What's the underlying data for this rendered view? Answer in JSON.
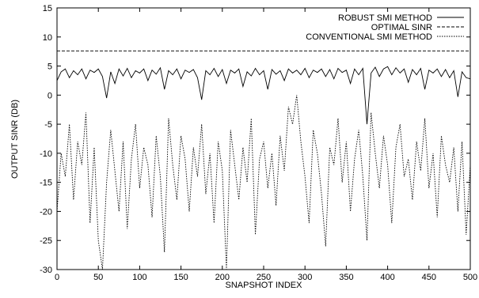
{
  "chart_data": {
    "type": "line",
    "xlabel": "SNAPSHOT INDEX",
    "ylabel": "OUTPUT SINR (DB)",
    "xlim": [
      0,
      500
    ],
    "xticks": [
      0,
      50,
      100,
      150,
      200,
      250,
      300,
      350,
      400,
      450,
      500
    ],
    "ylim": [
      -30,
      15
    ],
    "yticks": [
      -30,
      -25,
      -20,
      -15,
      -10,
      -5,
      0,
      5,
      10,
      15
    ],
    "grid": false,
    "legend": "upper right",
    "x": [
      0,
      5,
      10,
      15,
      20,
      25,
      30,
      35,
      40,
      45,
      50,
      55,
      60,
      65,
      70,
      75,
      80,
      85,
      90,
      95,
      100,
      105,
      110,
      115,
      120,
      125,
      130,
      135,
      140,
      145,
      150,
      155,
      160,
      165,
      170,
      175,
      180,
      185,
      190,
      195,
      200,
      205,
      210,
      215,
      220,
      225,
      230,
      235,
      240,
      245,
      250,
      255,
      260,
      265,
      270,
      275,
      280,
      285,
      290,
      295,
      300,
      305,
      310,
      315,
      320,
      325,
      330,
      335,
      340,
      345,
      350,
      355,
      360,
      365,
      370,
      375,
      380,
      385,
      390,
      395,
      400,
      405,
      410,
      415,
      420,
      425,
      430,
      435,
      440,
      445,
      450,
      455,
      460,
      465,
      470,
      475,
      480,
      485,
      490,
      495,
      500
    ],
    "series": [
      {
        "name": "ROBUST SMI METHOD",
        "color": "#000000",
        "style": "solid",
        "values": [
          2.5,
          4,
          4.5,
          3,
          4.2,
          3.5,
          4.5,
          2.8,
          4.3,
          3.9,
          4.5,
          3.2,
          -0.5,
          4,
          2,
          4.5,
          3.3,
          4.6,
          3,
          4.2,
          3.8,
          4.5,
          2.5,
          4.3,
          3.6,
          4.7,
          1,
          4.2,
          3.5,
          4.5,
          2.8,
          4.3,
          3.9,
          4.4,
          3,
          -0.8,
          4.2,
          3.5,
          4.6,
          3.2,
          4.4,
          2,
          4.3,
          3.8,
          4.5,
          1.5,
          4,
          3.3,
          4.6,
          3.5,
          4.2,
          1,
          4.4,
          3.6,
          4.2,
          2.5,
          4.5,
          3.8,
          4.3,
          3.5,
          4.6,
          3,
          4.3,
          3.9,
          4.5,
          3.2,
          4.4,
          2.8,
          4.6,
          3.9,
          4.3,
          2,
          4.5,
          3.5,
          4.6,
          -5,
          3.8,
          4.8,
          3.2,
          4.5,
          4.9,
          3.5,
          4.7,
          3.8,
          4.5,
          2.2,
          4.4,
          3.5,
          4.6,
          1,
          4.3,
          3.8,
          4.5,
          3.2,
          4.4,
          3,
          4.2,
          -0.3,
          4,
          3,
          2.8
        ]
      },
      {
        "name": "OPTIMAL SINR",
        "color": "#000000",
        "style": "dashed",
        "values": [
          7.6,
          7.6,
          7.6,
          7.6,
          7.6,
          7.6,
          7.6,
          7.6,
          7.6,
          7.6,
          7.6,
          7.6,
          7.6,
          7.6,
          7.6,
          7.6,
          7.6,
          7.6,
          7.6,
          7.6,
          7.6,
          7.6,
          7.6,
          7.6,
          7.6,
          7.6,
          7.6,
          7.6,
          7.6,
          7.6,
          7.6,
          7.6,
          7.6,
          7.6,
          7.6,
          7.6,
          7.6,
          7.6,
          7.6,
          7.6,
          7.6,
          7.6,
          7.6,
          7.6,
          7.6,
          7.6,
          7.6,
          7.6,
          7.6,
          7.6,
          7.6,
          7.6,
          7.6,
          7.6,
          7.6,
          7.6,
          7.6,
          7.6,
          7.6,
          7.6,
          7.6,
          7.6,
          7.6,
          7.6,
          7.6,
          7.6,
          7.6,
          7.6,
          7.6,
          7.6,
          7.6,
          7.6,
          7.6,
          7.6,
          7.6,
          7.6,
          7.6,
          7.6,
          7.6,
          7.6,
          7.6,
          7.6,
          7.6,
          7.6,
          7.6,
          7.6,
          7.6,
          7.6,
          7.6,
          7.6,
          7.6,
          7.6,
          7.6,
          7.6,
          7.6,
          7.6,
          7.6,
          7.6,
          7.6,
          7.6,
          7.6
        ]
      },
      {
        "name": "CONVENTIONAL SMI METHOD",
        "color": "#000000",
        "style": "dotted",
        "values": [
          -20,
          -10,
          -14,
          -5,
          -18,
          -8,
          -12,
          -3,
          -22,
          -9,
          -25,
          -30,
          -15,
          -6,
          -13,
          -20,
          -8,
          -23,
          -11,
          -5,
          -16,
          -9,
          -12,
          -21,
          -7,
          -14,
          -27,
          -4,
          -12,
          -18,
          -7,
          -11,
          -20,
          -9,
          -14,
          -5,
          -17,
          -10,
          -22,
          -8,
          -13,
          -30,
          -6,
          -12,
          -18,
          -9,
          -15,
          -4,
          -24,
          -11,
          -8,
          -16,
          -10,
          -19,
          -7,
          -13,
          -2,
          -5,
          0,
          -8,
          -14,
          -22,
          -6,
          -10,
          -17,
          -26,
          -9,
          -12,
          -4,
          -15,
          -8,
          -20,
          -11,
          -6,
          -14,
          -25,
          -3,
          -10,
          -16,
          -7,
          -12,
          -22,
          -9,
          -5,
          -14,
          -11,
          -18,
          -8,
          -13,
          -4,
          -16,
          -10,
          -21,
          -7,
          -12,
          -15,
          -9,
          -20,
          -8,
          -24,
          -12
        ]
      }
    ]
  }
}
